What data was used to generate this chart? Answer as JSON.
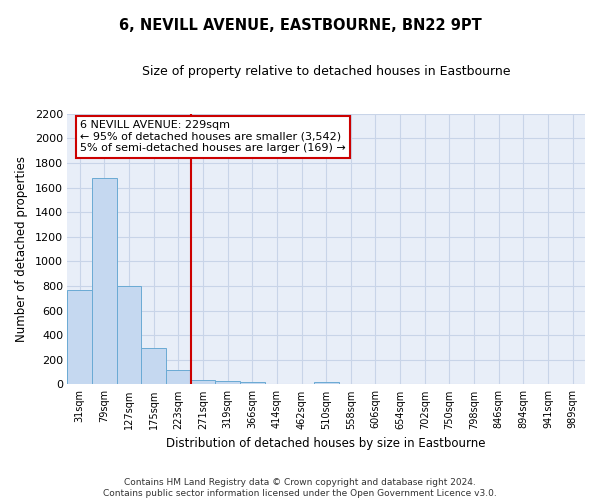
{
  "title": "6, NEVILL AVENUE, EASTBOURNE, BN22 9PT",
  "subtitle": "Size of property relative to detached houses in Eastbourne",
  "xlabel": "Distribution of detached houses by size in Eastbourne",
  "ylabel": "Number of detached properties",
  "categories": [
    "31sqm",
    "79sqm",
    "127sqm",
    "175sqm",
    "223sqm",
    "271sqm",
    "319sqm",
    "366sqm",
    "414sqm",
    "462sqm",
    "510sqm",
    "558sqm",
    "606sqm",
    "654sqm",
    "702sqm",
    "750sqm",
    "798sqm",
    "846sqm",
    "894sqm",
    "941sqm",
    "989sqm"
  ],
  "values": [
    770,
    1680,
    800,
    295,
    120,
    38,
    25,
    18,
    0,
    0,
    20,
    0,
    0,
    0,
    0,
    0,
    0,
    0,
    0,
    0,
    0
  ],
  "bar_color": "#c5d8f0",
  "bar_edge_color": "#6aaad4",
  "grid_color": "#c8d4e8",
  "vline_x_index": 4,
  "vline_color": "#cc0000",
  "annotation_line1": "6 NEVILL AVENUE: 229sqm",
  "annotation_line2": "← 95% of detached houses are smaller (3,542)",
  "annotation_line3": "5% of semi-detached houses are larger (169) →",
  "annotation_box_color": "#ffffff",
  "annotation_box_edge": "#cc0000",
  "ylim": [
    0,
    2200
  ],
  "yticks": [
    0,
    200,
    400,
    600,
    800,
    1000,
    1200,
    1400,
    1600,
    1800,
    2000,
    2200
  ],
  "footer1": "Contains HM Land Registry data © Crown copyright and database right 2024.",
  "footer2": "Contains public sector information licensed under the Open Government Licence v3.0.",
  "bg_color": "#e8eef8",
  "plot_bg_color": "#e8eef8"
}
